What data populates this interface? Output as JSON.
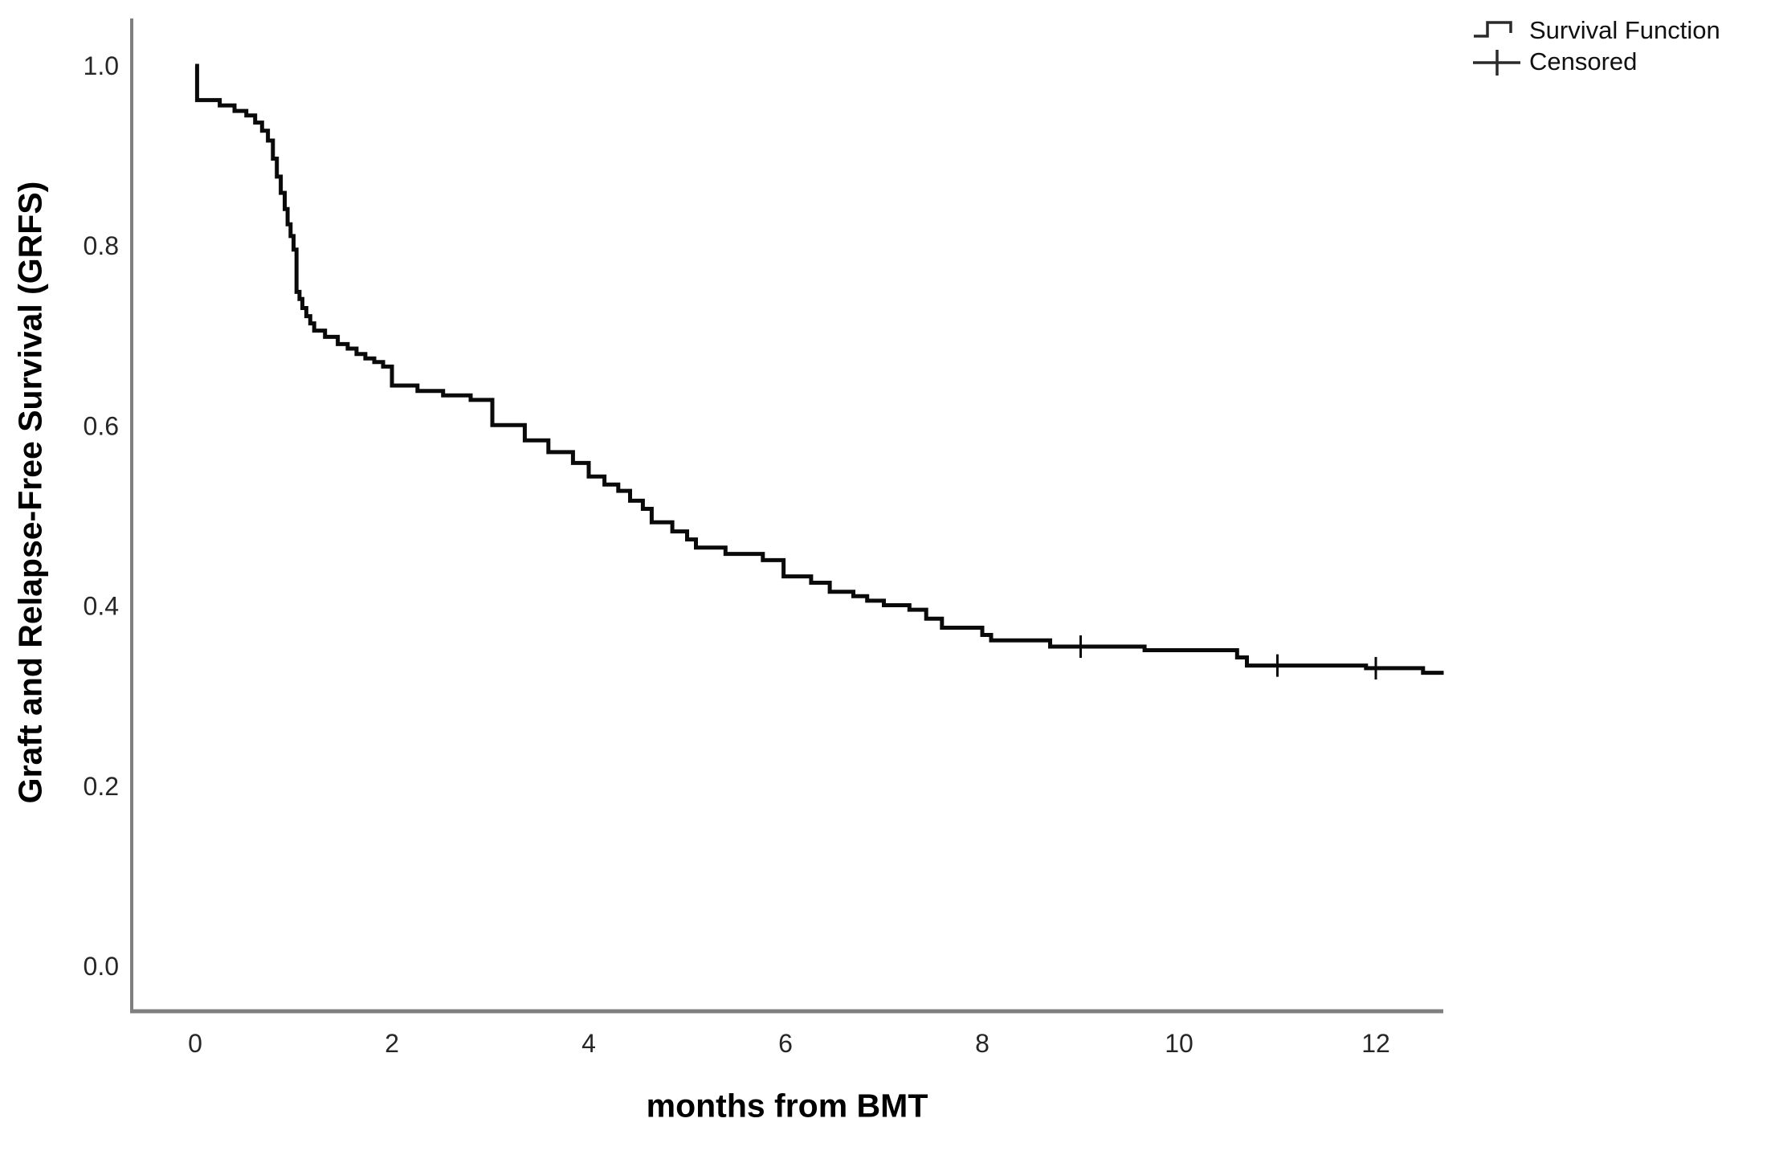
{
  "figure": {
    "background": "#ffffff",
    "curve_color": "#0a0a0a",
    "axis_color": "#7f7f7f",
    "tick_text_color": "#262626"
  },
  "chart_data": {
    "type": "line",
    "subtype": "kaplan-meier-step",
    "title": "",
    "xlabel": "months from BMT",
    "ylabel": "Graft and Relapse-Free Survival (GRFS)",
    "xlim": [
      -0.65,
      12.7
    ],
    "ylim": [
      -0.05,
      1.05
    ],
    "x_ticks": [
      {
        "label": "0",
        "value": 0
      },
      {
        "label": "2",
        "value": 2
      },
      {
        "label": "4",
        "value": 4
      },
      {
        "label": "6",
        "value": 6
      },
      {
        "label": "8",
        "value": 8
      },
      {
        "label": "10",
        "value": 10
      },
      {
        "label": "12",
        "value": 12
      }
    ],
    "y_ticks": [
      {
        "label": "1.0",
        "value": 1.0
      },
      {
        "label": "0.8",
        "value": 0.8
      },
      {
        "label": "0.6",
        "value": 0.6
      },
      {
        "label": "0.4",
        "value": 0.4
      },
      {
        "label": "0.2",
        "value": 0.2
      },
      {
        "label": "0.0",
        "value": 0.0
      }
    ],
    "legend": [
      {
        "label": "Survival Function",
        "marker": "step-line"
      },
      {
        "label": "Censored",
        "marker": "plus"
      }
    ],
    "grid": false,
    "legend_position": "top-right",
    "series": [
      {
        "name": "Survival Function",
        "end_time": 12.69,
        "steps": [
          [
            0.0,
            1.0
          ],
          [
            0.02,
            0.962
          ],
          [
            0.25,
            0.956
          ],
          [
            0.4,
            0.95
          ],
          [
            0.52,
            0.945
          ],
          [
            0.61,
            0.937
          ],
          [
            0.68,
            0.928
          ],
          [
            0.74,
            0.917
          ],
          [
            0.79,
            0.897
          ],
          [
            0.83,
            0.877
          ],
          [
            0.87,
            0.859
          ],
          [
            0.91,
            0.841
          ],
          [
            0.94,
            0.824
          ],
          [
            0.97,
            0.811
          ],
          [
            1.0,
            0.796
          ],
          [
            1.03,
            0.749
          ],
          [
            1.06,
            0.741
          ],
          [
            1.09,
            0.731
          ],
          [
            1.13,
            0.722
          ],
          [
            1.17,
            0.714
          ],
          [
            1.21,
            0.706
          ],
          [
            1.32,
            0.699
          ],
          [
            1.45,
            0.691
          ],
          [
            1.55,
            0.686
          ],
          [
            1.64,
            0.68
          ],
          [
            1.73,
            0.675
          ],
          [
            1.82,
            0.671
          ],
          [
            1.91,
            0.666
          ],
          [
            2.0,
            0.645
          ],
          [
            2.26,
            0.639
          ],
          [
            2.52,
            0.634
          ],
          [
            2.8,
            0.629
          ],
          [
            3.02,
            0.601
          ],
          [
            3.35,
            0.584
          ],
          [
            3.59,
            0.571
          ],
          [
            3.84,
            0.559
          ],
          [
            4.0,
            0.544
          ],
          [
            4.16,
            0.535
          ],
          [
            4.3,
            0.528
          ],
          [
            4.42,
            0.517
          ],
          [
            4.55,
            0.508
          ],
          [
            4.64,
            0.493
          ],
          [
            4.85,
            0.483
          ],
          [
            5.0,
            0.474
          ],
          [
            5.09,
            0.465
          ],
          [
            5.39,
            0.458
          ],
          [
            5.77,
            0.451
          ],
          [
            5.98,
            0.433
          ],
          [
            6.26,
            0.426
          ],
          [
            6.45,
            0.416
          ],
          [
            6.69,
            0.411
          ],
          [
            6.83,
            0.406
          ],
          [
            7.0,
            0.401
          ],
          [
            7.26,
            0.396
          ],
          [
            7.43,
            0.386
          ],
          [
            7.59,
            0.376
          ],
          [
            8.0,
            0.368
          ],
          [
            8.09,
            0.362
          ],
          [
            8.69,
            0.355
          ],
          [
            9.65,
            0.351
          ],
          [
            10.59,
            0.343
          ],
          [
            10.69,
            0.334
          ],
          [
            11.9,
            0.331
          ],
          [
            12.48,
            0.326
          ]
        ]
      }
    ],
    "censored_points": [
      [
        9.0,
        0.355
      ],
      [
        11.0,
        0.334
      ],
      [
        12.0,
        0.331
      ]
    ]
  }
}
